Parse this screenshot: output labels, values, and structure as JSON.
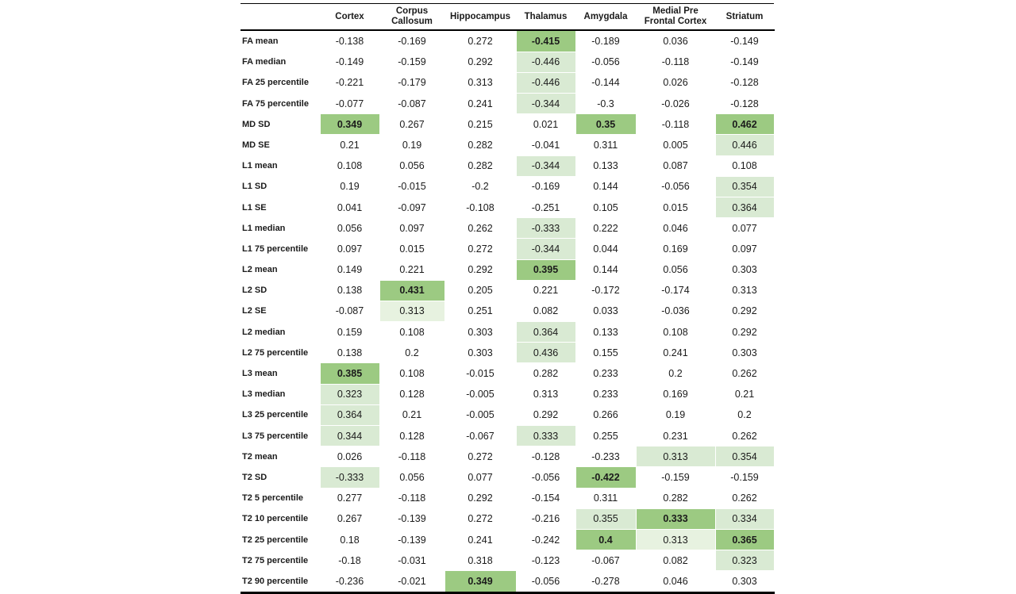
{
  "page": {
    "background": "#ffffff"
  },
  "table": {
    "corner_label": "",
    "columns": [
      "Cortex",
      "Corpus Callosum",
      "Hippocampus",
      "Thalamus",
      "Amygdala",
      "Medial Pre Frontal Cortex",
      "Striatum"
    ],
    "highlight_colors": {
      "dark_green_bold": "#9CCA82",
      "light_green": "#D9EAD3",
      "extra_light_green": "#E7F2E0"
    },
    "highlight_levels_legend": {
      "0": "none",
      "1": "extra-light-green",
      "2": "light-green",
      "3": "dark-green-bold"
    },
    "rows": [
      {
        "label": "FA mean",
        "values": [
          "-0.138",
          "-0.169",
          "0.272",
          "-0.415",
          "-0.189",
          "0.036",
          "-0.149"
        ],
        "hl": [
          0,
          0,
          0,
          3,
          0,
          0,
          0
        ]
      },
      {
        "label": "FA median",
        "values": [
          "-0.149",
          "-0.159",
          "0.292",
          "-0.446",
          "-0.056",
          "-0.118",
          "-0.149"
        ],
        "hl": [
          0,
          0,
          0,
          2,
          0,
          0,
          0
        ]
      },
      {
        "label": "FA 25 percentile",
        "values": [
          "-0.221",
          "-0.179",
          "0.313",
          "-0.446",
          "-0.144",
          "0.026",
          "-0.128"
        ],
        "hl": [
          0,
          0,
          0,
          2,
          0,
          0,
          0
        ]
      },
      {
        "label": "FA 75 percentile",
        "values": [
          "-0.077",
          "-0.087",
          "0.241",
          "-0.344",
          "-0.3",
          "-0.026",
          "-0.128"
        ],
        "hl": [
          0,
          0,
          0,
          2,
          0,
          0,
          0
        ]
      },
      {
        "label": "MD SD",
        "values": [
          "0.349",
          "0.267",
          "0.215",
          "0.021",
          "0.35",
          "-0.118",
          "0.462"
        ],
        "hl": [
          3,
          0,
          0,
          0,
          3,
          0,
          3
        ]
      },
      {
        "label": "MD SE",
        "values": [
          "0.21",
          "0.19",
          "0.282",
          "-0.041",
          "0.311",
          "0.005",
          "0.446"
        ],
        "hl": [
          0,
          0,
          0,
          0,
          0,
          0,
          2
        ]
      },
      {
        "label": "L1 mean",
        "values": [
          "0.108",
          "0.056",
          "0.282",
          "-0.344",
          "0.133",
          "0.087",
          "0.108"
        ],
        "hl": [
          0,
          0,
          0,
          2,
          0,
          0,
          0
        ]
      },
      {
        "label": "L1 SD",
        "values": [
          "0.19",
          "-0.015",
          "-0.2",
          "-0.169",
          "0.144",
          "-0.056",
          "0.354"
        ],
        "hl": [
          0,
          0,
          0,
          0,
          0,
          0,
          2
        ]
      },
      {
        "label": "L1 SE",
        "values": [
          "0.041",
          "-0.097",
          "-0.108",
          "-0.251",
          "0.105",
          "0.015",
          "0.364"
        ],
        "hl": [
          0,
          0,
          0,
          0,
          0,
          0,
          2
        ]
      },
      {
        "label": "L1 median",
        "values": [
          "0.056",
          "0.097",
          "0.262",
          "-0.333",
          "0.222",
          "0.046",
          "0.077"
        ],
        "hl": [
          0,
          0,
          0,
          2,
          0,
          0,
          0
        ]
      },
      {
        "label": "L1 75 percentile",
        "values": [
          "0.097",
          "0.015",
          "0.272",
          "-0.344",
          "0.044",
          "0.169",
          "0.097"
        ],
        "hl": [
          0,
          0,
          0,
          2,
          0,
          0,
          0
        ]
      },
      {
        "label": "L2 mean",
        "values": [
          "0.149",
          "0.221",
          "0.292",
          "0.395",
          "0.144",
          "0.056",
          "0.303"
        ],
        "hl": [
          0,
          0,
          0,
          3,
          0,
          0,
          0
        ]
      },
      {
        "label": "L2 SD",
        "values": [
          "0.138",
          "0.431",
          "0.205",
          "0.221",
          "-0.172",
          "-0.174",
          "0.313"
        ],
        "hl": [
          0,
          3,
          0,
          0,
          0,
          0,
          0
        ]
      },
      {
        "label": "L2 SE",
        "values": [
          "-0.087",
          "0.313",
          "0.251",
          "0.082",
          "0.033",
          "-0.036",
          "0.292"
        ],
        "hl": [
          0,
          1,
          0,
          0,
          0,
          0,
          0
        ]
      },
      {
        "label": "L2 median",
        "values": [
          "0.159",
          "0.108",
          "0.303",
          "0.364",
          "0.133",
          "0.108",
          "0.292"
        ],
        "hl": [
          0,
          0,
          0,
          2,
          0,
          0,
          0
        ]
      },
      {
        "label": "L2 75 percentile",
        "values": [
          "0.138",
          "0.2",
          "0.303",
          "0.436",
          "0.155",
          "0.241",
          "0.303"
        ],
        "hl": [
          0,
          0,
          0,
          2,
          0,
          0,
          0
        ]
      },
      {
        "label": "L3 mean",
        "values": [
          "0.385",
          "0.108",
          "-0.015",
          "0.282",
          "0.233",
          "0.2",
          "0.262"
        ],
        "hl": [
          3,
          0,
          0,
          0,
          0,
          0,
          0
        ]
      },
      {
        "label": "L3 median",
        "values": [
          "0.323",
          "0.128",
          "-0.005",
          "0.313",
          "0.233",
          "0.169",
          "0.21"
        ],
        "hl": [
          2,
          0,
          0,
          0,
          0,
          0,
          0
        ]
      },
      {
        "label": "L3 25 percentile",
        "values": [
          "0.364",
          "0.21",
          "-0.005",
          "0.292",
          "0.266",
          "0.19",
          "0.2"
        ],
        "hl": [
          2,
          0,
          0,
          0,
          0,
          0,
          0
        ]
      },
      {
        "label": "L3 75 percentile",
        "values": [
          "0.344",
          "0.128",
          "-0.067",
          "0.333",
          "0.255",
          "0.231",
          "0.262"
        ],
        "hl": [
          2,
          0,
          0,
          2,
          0,
          0,
          0
        ]
      },
      {
        "label": "T2 mean",
        "values": [
          "0.026",
          "-0.118",
          "0.272",
          "-0.128",
          "-0.233",
          "0.313",
          "0.354"
        ],
        "hl": [
          0,
          0,
          0,
          0,
          0,
          2,
          2
        ]
      },
      {
        "label": "T2 SD",
        "values": [
          "-0.333",
          "0.056",
          "0.077",
          "-0.056",
          "-0.422",
          "-0.159",
          "-0.159"
        ],
        "hl": [
          2,
          0,
          0,
          0,
          3,
          0,
          0
        ]
      },
      {
        "label": "T2 5 percentile",
        "values": [
          "0.277",
          "-0.118",
          "0.292",
          "-0.154",
          "0.311",
          "0.282",
          "0.262"
        ],
        "hl": [
          0,
          0,
          0,
          0,
          0,
          0,
          0
        ]
      },
      {
        "label": "T2 10 percentile",
        "values": [
          "0.267",
          "-0.139",
          "0.272",
          "-0.216",
          "0.355",
          "0.333",
          "0.334"
        ],
        "hl": [
          0,
          0,
          0,
          0,
          2,
          3,
          2
        ]
      },
      {
        "label": "T2 25 percentile",
        "values": [
          "0.18",
          "-0.139",
          "0.241",
          "-0.242",
          "0.4",
          "0.313",
          "0.365"
        ],
        "hl": [
          0,
          0,
          0,
          0,
          3,
          1,
          3
        ]
      },
      {
        "label": "T2 75 percentile",
        "values": [
          "-0.18",
          "-0.031",
          "0.318",
          "-0.123",
          "-0.067",
          "0.082",
          "0.323"
        ],
        "hl": [
          0,
          0,
          0,
          0,
          0,
          0,
          2
        ]
      },
      {
        "label": "T2 90 percentile",
        "values": [
          "-0.236",
          "-0.021",
          "0.349",
          "-0.056",
          "-0.278",
          "0.046",
          "0.303"
        ],
        "hl": [
          0,
          0,
          3,
          0,
          0,
          0,
          0
        ]
      }
    ]
  }
}
